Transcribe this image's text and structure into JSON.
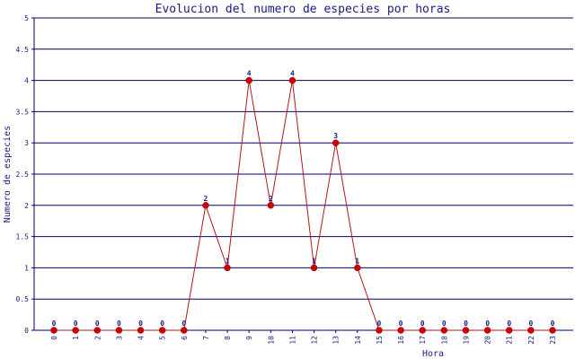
{
  "chart_data": {
    "type": "line",
    "title": "Evolucion del numero de especies por horas",
    "xlabel": "Hora",
    "ylabel": "Numero de especies",
    "categories": [
      "0",
      "1",
      "2",
      "3",
      "4",
      "5",
      "6",
      "7",
      "8",
      "9",
      "10",
      "11",
      "12",
      "13",
      "14",
      "15",
      "16",
      "17",
      "18",
      "19",
      "20",
      "21",
      "22",
      "23"
    ],
    "series": [
      {
        "values": [
          0,
          0,
          0,
          0,
          0,
          0,
          0,
          2,
          1,
          4,
          2,
          4,
          1,
          3,
          1,
          0,
          0,
          0,
          0,
          0,
          0,
          0,
          0,
          0
        ],
        "line_color": "#b01818",
        "marker_color": "#d00000"
      }
    ],
    "ylim": [
      0,
      5
    ],
    "yticks": [
      "0",
      "0.5",
      "1",
      "1.5",
      "2",
      "2.5",
      "3",
      "3.5",
      "4",
      "4.5",
      "5"
    ],
    "grid": true,
    "grid_color": "#00006e",
    "axis_color": "#00006e",
    "text_color": "#1a1a80"
  }
}
